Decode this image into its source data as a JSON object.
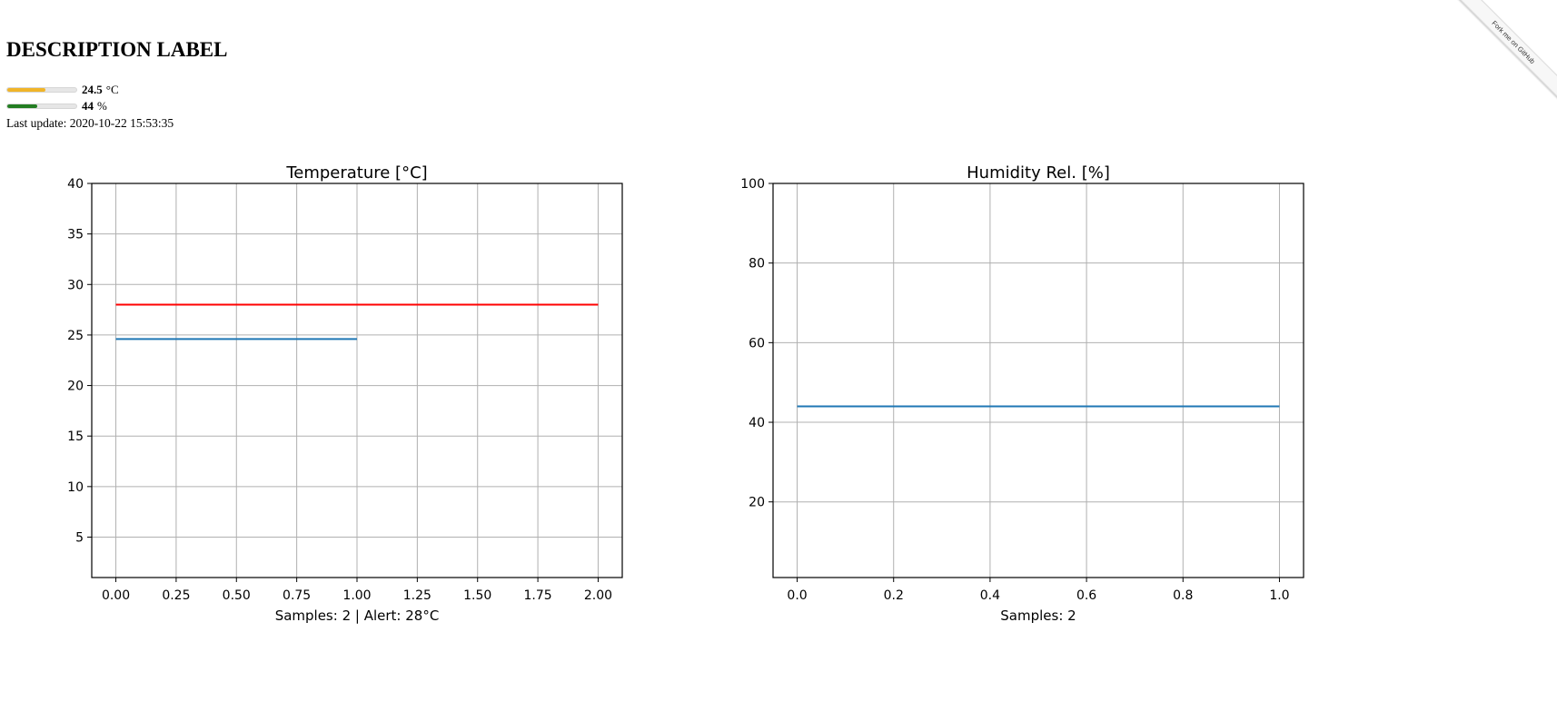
{
  "page": {
    "title": "DESCRIPTION LABEL",
    "last_update": "Last update: 2020-10-22 15:53:35",
    "fork_ribbon": "Fork me on GitHub"
  },
  "readings": {
    "temperature": {
      "value": "24.5",
      "unit": "°C",
      "level": 0.55,
      "color": "#f0b429"
    },
    "humidity": {
      "value": "44",
      "unit": "%",
      "level": 0.44,
      "color": "#237d22"
    }
  },
  "chart_data": [
    {
      "type": "line",
      "title": "Temperature [°C]",
      "xlabel": "Samples: 2 | Alert: 28°C",
      "ylabel": "",
      "xlim": [
        -0.1,
        2.1
      ],
      "ylim": [
        1,
        40
      ],
      "x_ticks": [
        "0.00",
        "0.25",
        "0.50",
        "0.75",
        "1.00",
        "1.25",
        "1.50",
        "1.75",
        "2.00"
      ],
      "y_ticks": [
        "5",
        "10",
        "15",
        "20",
        "25",
        "30",
        "35",
        "40"
      ],
      "grid": true,
      "series": [
        {
          "x": [
            0,
            1
          ],
          "y": [
            24.6,
            24.6
          ],
          "color": "#1f77b4"
        },
        {
          "x": [
            0,
            2
          ],
          "y": [
            28,
            28
          ],
          "color": "#ff0000"
        }
      ]
    },
    {
      "type": "line",
      "title": "Humidity Rel. [%]",
      "xlabel": "Samples: 2",
      "ylabel": "",
      "xlim": [
        -0.05,
        1.05
      ],
      "ylim": [
        1,
        100
      ],
      "x_ticks": [
        "0.0",
        "0.2",
        "0.4",
        "0.6",
        "0.8",
        "1.0"
      ],
      "y_ticks": [
        "20",
        "40",
        "60",
        "80",
        "100"
      ],
      "grid": true,
      "series": [
        {
          "x": [
            0,
            1
          ],
          "y": [
            44,
            44
          ],
          "color": "#1f77b4"
        }
      ]
    }
  ]
}
